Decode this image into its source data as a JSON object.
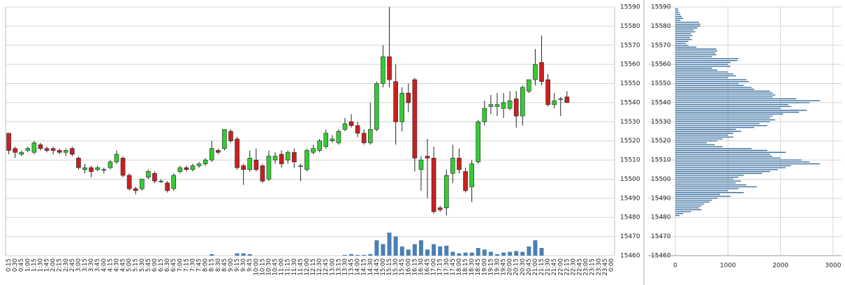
{
  "chart_data": [
    {
      "type": "candlestick",
      "categories": [
        "0:15",
        "0:30",
        "0:45",
        "1:00",
        "1:15",
        "1:30",
        "1:45",
        "2:00",
        "2:15",
        "2:30",
        "2:45",
        "3:00",
        "3:15",
        "3:30",
        "3:45",
        "4:00",
        "4:15",
        "4:30",
        "4:45",
        "5:00",
        "5:15",
        "5:30",
        "5:45",
        "6:00",
        "6:15",
        "6:30",
        "6:45",
        "7:00",
        "7:15",
        "7:30",
        "7:45",
        "8:00",
        "8:15",
        "8:30",
        "8:45",
        "9:00",
        "9:15",
        "9:30",
        "9:45",
        "10:00",
        "10:15",
        "10:30",
        "10:45",
        "11:00",
        "11:15",
        "11:30",
        "11:45",
        "12:00",
        "12:15",
        "12:30",
        "12:45",
        "13:00",
        "13:15",
        "13:30",
        "13:45",
        "14:00",
        "14:15",
        "14:30",
        "14:45",
        "15:00",
        "15:15",
        "15:30",
        "15:45",
        "16:00",
        "16:15",
        "16:30",
        "16:45",
        "17:00",
        "17:15",
        "17:30",
        "17:45",
        "18:00",
        "18:15",
        "18:30",
        "18:45",
        "19:00",
        "19:15",
        "19:30",
        "19:45",
        "20:00",
        "20:15",
        "20:30",
        "20:45",
        "21:00",
        "21:15",
        "21:30",
        "21:45",
        "22:00",
        "22:15",
        "22:30",
        "22:45",
        "23:00",
        "23:15",
        "23:30",
        "23:45",
        "0:00"
      ],
      "ohlc": [
        [
          15524,
          15524,
          15513,
          15515
        ],
        [
          15516,
          15517,
          15511,
          15514
        ],
        [
          15513,
          15515,
          15512,
          15514
        ],
        [
          15515,
          15517,
          15514,
          15516
        ],
        [
          15514,
          15520,
          15513,
          15519
        ],
        [
          15518,
          15519,
          15515,
          15516
        ],
        [
          15516,
          15517,
          15514,
          15515
        ],
        [
          15516,
          15517,
          15513,
          15515
        ],
        [
          15515,
          15516,
          15513,
          15514
        ],
        [
          15514,
          15516,
          15512,
          15515
        ],
        [
          15516,
          15517,
          15512,
          15513
        ],
        [
          15511,
          15512,
          15505,
          15506
        ],
        [
          15505,
          15508,
          15503,
          15506
        ],
        [
          15506,
          15507,
          15501,
          15504
        ],
        [
          15505,
          15507,
          15504,
          15506
        ],
        [
          15505,
          15506,
          15503,
          15505
        ],
        [
          15506,
          15510,
          15505,
          15509
        ],
        [
          15509,
          15515,
          15508,
          15513
        ],
        [
          15511,
          15512,
          15501,
          15502
        ],
        [
          15502,
          15503,
          15494,
          15495
        ],
        [
          15495,
          15496,
          15492,
          15494
        ],
        [
          15495,
          15500,
          15494,
          15500
        ],
        [
          15501,
          15505,
          15500,
          15504
        ],
        [
          15503,
          15504,
          15498,
          15499
        ],
        [
          15499,
          15500,
          15498,
          15499
        ],
        [
          15498,
          15499,
          15493,
          15494
        ],
        [
          15495,
          15503,
          15494,
          15502
        ],
        [
          15504,
          15507,
          15503,
          15506
        ],
        [
          15506,
          15507,
          15504,
          15505
        ],
        [
          15505,
          15508,
          15504,
          15507
        ],
        [
          15507,
          15509,
          15506,
          15508
        ],
        [
          15508,
          15511,
          15507,
          15510
        ],
        [
          15510,
          15520,
          15509,
          15516
        ],
        [
          15515,
          15516,
          15513,
          15514
        ],
        [
          15516,
          15526,
          15515,
          15526
        ],
        [
          15525,
          15526,
          15519,
          15520
        ],
        [
          15521,
          15522,
          15505,
          15506
        ],
        [
          15507,
          15508,
          15497,
          15505
        ],
        [
          15505,
          15515,
          15504,
          15511
        ],
        [
          15510,
          15516,
          15504,
          15505
        ],
        [
          15507,
          15508,
          15498,
          15499
        ],
        [
          15500,
          15515,
          15499,
          15512
        ],
        [
          15510,
          15514,
          15508,
          15512
        ],
        [
          15513,
          15515,
          15506,
          15508
        ],
        [
          15510,
          15515,
          15508,
          15514
        ],
        [
          15514,
          15516,
          15506,
          15509
        ],
        [
          15507,
          15508,
          15499,
          15507
        ],
        [
          15505,
          15516,
          15504,
          15515
        ],
        [
          15514,
          15518,
          15513,
          15516
        ],
        [
          15515,
          15521,
          15514,
          15520
        ],
        [
          15517,
          15526,
          15516,
          15524
        ],
        [
          15520,
          15523,
          15519,
          15521
        ],
        [
          15519,
          15526,
          15518,
          15525
        ],
        [
          15526,
          15532,
          15525,
          15529
        ],
        [
          15530,
          15534,
          15527,
          15528
        ],
        [
          15528,
          15530,
          15522,
          15524
        ],
        [
          15524,
          15526,
          15518,
          15519
        ],
        [
          15519,
          15540,
          15518,
          15526
        ],
        [
          15526,
          15551,
          15525,
          15550
        ],
        [
          15550,
          15570,
          15548,
          15564
        ],
        [
          15564,
          15590,
          15548,
          15552
        ],
        [
          15551,
          15560,
          15518,
          15530
        ],
        [
          15530,
          15548,
          15525,
          15545
        ],
        [
          15545,
          15550,
          15535,
          15540
        ],
        [
          15552,
          15553,
          15504,
          15511
        ],
        [
          15505,
          15512,
          15494,
          15510
        ],
        [
          15512,
          15521,
          15490,
          15511
        ],
        [
          15511,
          15517,
          15482,
          15483
        ],
        [
          15485,
          15486,
          15483,
          15484
        ],
        [
          15485,
          15505,
          15481,
          15502
        ],
        [
          15503,
          15518,
          15498,
          15511
        ],
        [
          15511,
          15516,
          15503,
          15505
        ],
        [
          15504,
          15506,
          15493,
          15494
        ],
        [
          15496,
          15510,
          15488,
          15508
        ],
        [
          15509,
          15531,
          15508,
          15530
        ],
        [
          15530,
          15541,
          15528,
          15537
        ],
        [
          15538,
          15544,
          15534,
          15539
        ],
        [
          15538,
          15545,
          15533,
          15539
        ],
        [
          15537,
          15545,
          15532,
          15540
        ],
        [
          15537,
          15546,
          15536,
          15541
        ],
        [
          15542,
          15546,
          15527,
          15533
        ],
        [
          15533,
          15549,
          15528,
          15548
        ],
        [
          15546,
          15552,
          15545,
          15552
        ],
        [
          15552,
          15568,
          15549,
          15560
        ],
        [
          15561,
          15575,
          15549,
          15551
        ],
        [
          15552,
          15555,
          15538,
          15539
        ],
        [
          15539,
          15545,
          15537,
          15541
        ],
        [
          15542,
          15543,
          15533,
          15542
        ],
        [
          15543,
          15546,
          15540,
          15540
        ],
        null,
        null,
        null,
        null,
        null,
        null,
        null
      ],
      "volume": [
        0,
        0,
        0,
        0,
        0,
        0,
        0,
        0,
        0,
        0,
        0,
        0,
        0,
        0,
        0,
        0,
        0,
        0,
        0,
        0,
        0,
        0,
        0,
        0,
        0,
        0,
        0,
        0,
        0,
        0,
        0,
        0,
        2,
        0,
        0,
        0,
        3,
        3,
        2,
        0,
        0,
        0,
        0,
        0,
        0,
        0,
        0,
        0,
        0,
        0,
        0,
        0,
        0,
        1,
        2,
        1,
        1,
        2,
        20,
        15,
        30,
        25,
        12,
        8,
        15,
        20,
        8,
        15,
        12,
        13,
        5,
        3,
        4,
        4,
        10,
        8,
        5,
        2,
        4,
        5,
        6,
        5,
        12,
        20,
        10,
        0,
        0,
        0,
        0,
        0,
        0,
        0,
        0,
        0,
        0,
        0
      ],
      "up_color": "#33cc33",
      "down_color": "#cc1f1f",
      "volume_color": "#4a7fb5",
      "ylim": [
        15460,
        15590
      ],
      "yticks": [
        15460,
        15470,
        15480,
        15490,
        15500,
        15510,
        15520,
        15530,
        15540,
        15550,
        15560,
        15570,
        15580,
        15590
      ],
      "grid": true
    },
    {
      "type": "barh",
      "y": [
        15589,
        15588,
        15587,
        15586,
        15585,
        15584,
        15583,
        15582,
        15581,
        15580,
        15579,
        15578,
        15577,
        15576,
        15575,
        15574,
        15573,
        15572,
        15571,
        15570,
        15569,
        15568,
        15567,
        15566,
        15565,
        15564,
        15563,
        15562,
        15561,
        15560,
        15559,
        15558,
        15557,
        15556,
        15555,
        15554,
        15553,
        15552,
        15551,
        15550,
        15549,
        15548,
        15547,
        15546,
        15545,
        15544,
        15543,
        15542,
        15541,
        15540,
        15539,
        15538,
        15537,
        15536,
        15535,
        15534,
        15533,
        15532,
        15531,
        15530,
        15529,
        15528,
        15527,
        15526,
        15525,
        15524,
        15523,
        15522,
        15521,
        15520,
        15519,
        15518,
        15517,
        15516,
        15515,
        15514,
        15513,
        15512,
        15511,
        15510,
        15509,
        15508,
        15507,
        15506,
        15505,
        15504,
        15503,
        15502,
        15501,
        15500,
        15499,
        15498,
        15497,
        15496,
        15495,
        15494,
        15493,
        15492,
        15491,
        15490,
        15489,
        15488,
        15487,
        15486,
        15485,
        15484,
        15483,
        15482,
        15481
      ],
      "values": [
        50,
        60,
        80,
        100,
        120,
        150,
        100,
        450,
        480,
        470,
        420,
        350,
        380,
        300,
        330,
        280,
        320,
        250,
        200,
        250,
        400,
        780,
        800,
        760,
        780,
        700,
        1200,
        1180,
        1050,
        1000,
        1050,
        700,
        800,
        1000,
        1100,
        1150,
        1000,
        1350,
        1400,
        1200,
        1300,
        1450,
        1500,
        1800,
        1850,
        1900,
        1850,
        2300,
        2750,
        2550,
        2150,
        2200,
        2000,
        2500,
        2350,
        2050,
        1850,
        1800,
        1900,
        1800,
        1600,
        1750,
        1500,
        1150,
        1250,
        1100,
        1000,
        1100,
        900,
        800,
        600,
        750,
        900,
        1450,
        1750,
        2100,
        1800,
        1850,
        2000,
        2400,
        2550,
        2750,
        2200,
        2100,
        1950,
        1800,
        1650,
        1300,
        1200,
        1100,
        1250,
        1150,
        1350,
        1550,
        1200,
        1000,
        1300,
        850,
        1050,
        800,
        700,
        650,
        550,
        500,
        450,
        500,
        300,
        150,
        80
      ],
      "color": "#3a6f9f",
      "xlim": [
        0,
        3000
      ],
      "xticks": [
        0,
        1000,
        2000,
        3000
      ],
      "ylim": [
        15460,
        15590
      ],
      "yticks": [
        15460,
        15470,
        15480,
        15490,
        15500,
        15510,
        15520,
        15530,
        15540,
        15550,
        15560,
        15570,
        15580,
        15590
      ],
      "grid": true
    }
  ]
}
